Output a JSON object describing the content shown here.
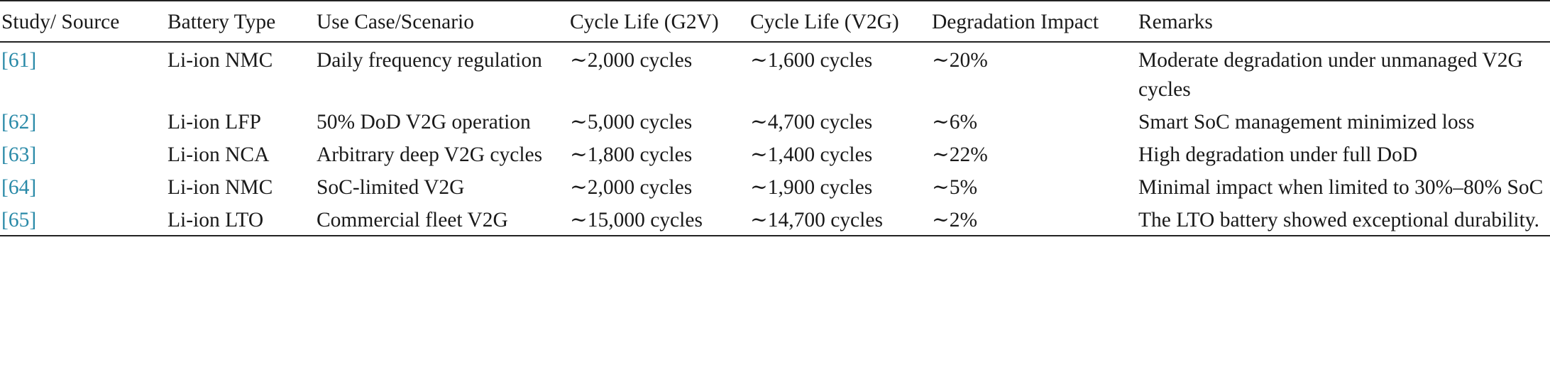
{
  "table": {
    "headers": [
      "Study/ Source",
      "Battery Type",
      "Use Case/Scenario",
      "Cycle Life (G2V)",
      "Cycle Life (V2G)",
      "Degradation Impact",
      "Remarks"
    ],
    "rows": [
      {
        "source": "[61]",
        "battery": "Li-ion NMC",
        "scenario": "Daily frequency regulation",
        "g2v": "∼2,000 cycles",
        "v2g": "∼1,600 cycles",
        "impact": "∼20%",
        "remarks": "Moderate degradation under unmanaged V2G cycles"
      },
      {
        "source": "[62]",
        "battery": "Li-ion LFP",
        "scenario": "50% DoD V2G operation",
        "g2v": "∼5,000 cycles",
        "v2g": "∼4,700 cycles",
        "impact": "∼6%",
        "remarks": "Smart SoC management minimized loss"
      },
      {
        "source": "[63]",
        "battery": "Li-ion NCA",
        "scenario": "Arbitrary deep V2G cycles",
        "g2v": "∼1,800 cycles",
        "v2g": "∼1,400 cycles",
        "impact": "∼22%",
        "remarks": "High degradation under full DoD"
      },
      {
        "source": "[64]",
        "battery": "Li-ion NMC",
        "scenario": "SoC-limited V2G",
        "g2v": "∼2,000 cycles",
        "v2g": "∼1,900 cycles",
        "impact": "∼5%",
        "remarks": "Minimal impact when limited to 30%–80% SoC"
      },
      {
        "source": "[65]",
        "battery": "Li-ion LTO",
        "scenario": "Commercial fleet V2G",
        "g2v": "∼15,000 cycles",
        "v2g": "∼14,700 cycles",
        "impact": "∼2%",
        "remarks": "The LTO battery showed exceptional durability."
      }
    ]
  },
  "colors": {
    "reference_link": "#2a8aa8",
    "text": "#1a1a1a",
    "rule": "#222222"
  }
}
